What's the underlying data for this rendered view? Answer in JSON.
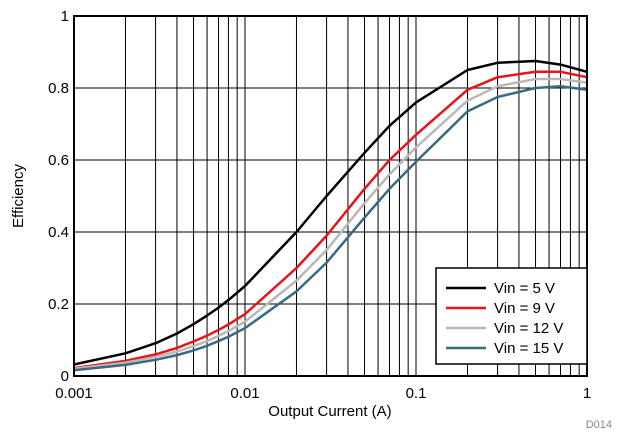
{
  "chart_data": {
    "type": "line",
    "x_scale": "log",
    "xlabel": "Output Current (A)",
    "ylabel": "Efficiency",
    "xlim": [
      0.001,
      1
    ],
    "ylim": [
      0,
      1
    ],
    "x_tick_labels": [
      "0.001",
      "0.01",
      "0.1",
      "1"
    ],
    "x_tick_values": [
      0.001,
      0.01,
      0.1,
      1
    ],
    "y_tick_labels": [
      "0",
      "0.2",
      "0.4",
      "0.6",
      "0.8",
      "1"
    ],
    "y_tick_values": [
      0,
      0.2,
      0.4,
      0.6,
      0.8,
      1
    ],
    "grid": "vertical log gridlines at each decade and sub-decade; horizontal lines at y ticks",
    "legend_position": "bottom-right",
    "figure_id": "D014",
    "series": [
      {
        "name": "Vin = 5 V",
        "color": "#000000",
        "x": [
          0.001,
          0.002,
          0.003,
          0.004,
          0.005,
          0.006,
          0.007,
          0.008,
          0.01,
          0.02,
          0.03,
          0.05,
          0.07,
          0.1,
          0.2,
          0.3,
          0.5,
          0.7,
          1
        ],
        "y": [
          0.032,
          0.063,
          0.091,
          0.118,
          0.144,
          0.168,
          0.19,
          0.211,
          0.25,
          0.4,
          0.5,
          0.62,
          0.695,
          0.76,
          0.85,
          0.87,
          0.875,
          0.865,
          0.845
        ]
      },
      {
        "name": "Vin = 9 V",
        "color": "#e8141b",
        "x": [
          0.001,
          0.002,
          0.003,
          0.004,
          0.005,
          0.006,
          0.007,
          0.008,
          0.01,
          0.02,
          0.03,
          0.05,
          0.07,
          0.1,
          0.2,
          0.3,
          0.5,
          0.7,
          1
        ],
        "y": [
          0.022,
          0.042,
          0.06,
          0.078,
          0.096,
          0.112,
          0.128,
          0.143,
          0.172,
          0.3,
          0.39,
          0.52,
          0.6,
          0.67,
          0.795,
          0.83,
          0.845,
          0.845,
          0.83
        ]
      },
      {
        "name": "Vin = 12 V",
        "color": "#b9b9b9",
        "x": [
          0.001,
          0.002,
          0.003,
          0.004,
          0.005,
          0.006,
          0.007,
          0.008,
          0.01,
          0.02,
          0.03,
          0.05,
          0.07,
          0.1,
          0.2,
          0.3,
          0.5,
          0.7,
          1
        ],
        "y": [
          0.02,
          0.037,
          0.053,
          0.068,
          0.083,
          0.097,
          0.111,
          0.125,
          0.151,
          0.265,
          0.35,
          0.48,
          0.56,
          0.635,
          0.765,
          0.805,
          0.825,
          0.825,
          0.815
        ]
      },
      {
        "name": "Vin = 15 V",
        "color": "#3b6882",
        "x": [
          0.001,
          0.002,
          0.003,
          0.004,
          0.005,
          0.006,
          0.007,
          0.008,
          0.01,
          0.02,
          0.03,
          0.05,
          0.07,
          0.1,
          0.2,
          0.3,
          0.5,
          0.7,
          1
        ],
        "y": [
          0.016,
          0.031,
          0.045,
          0.058,
          0.071,
          0.084,
          0.097,
          0.109,
          0.133,
          0.235,
          0.315,
          0.44,
          0.52,
          0.595,
          0.735,
          0.775,
          0.8,
          0.805,
          0.795
        ]
      }
    ]
  }
}
